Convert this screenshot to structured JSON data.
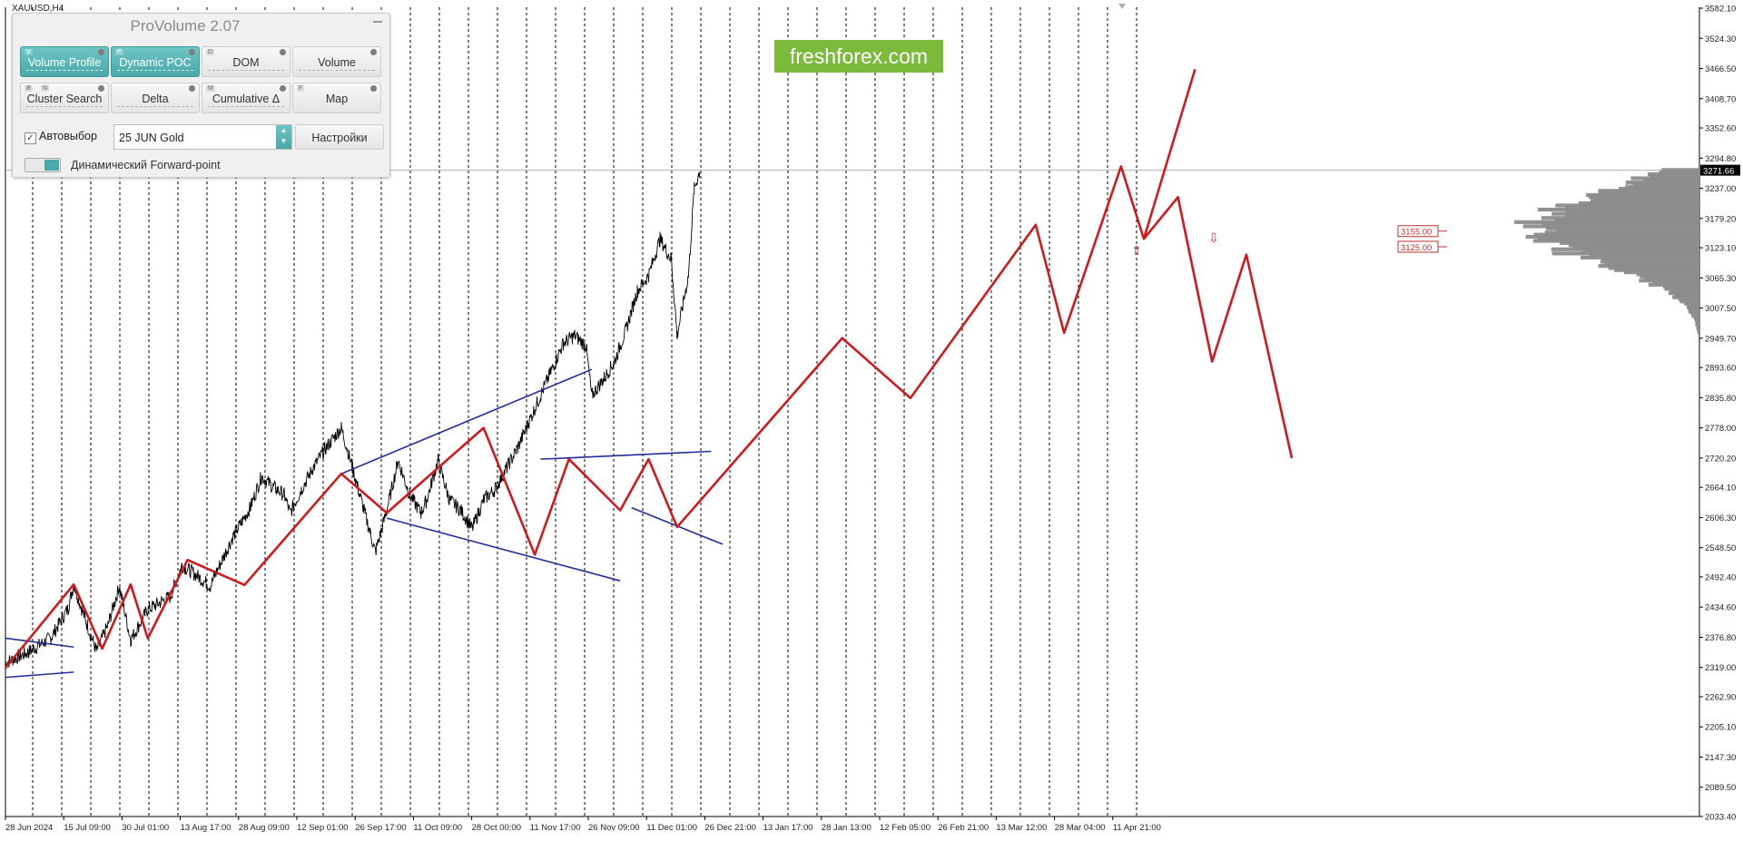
{
  "window": {
    "symbol": "XAUUSD,H4",
    "watermark": "freshforex.com",
    "current_price": "3271.66"
  },
  "panel": {
    "title": "ProVolume 2.07",
    "buttons": [
      {
        "label": "Volume Profile",
        "key": "V",
        "active": true
      },
      {
        "label": "Dynamic POC",
        "key": "P",
        "active": true
      },
      {
        "label": "DOM",
        "key": "D",
        "active": false
      },
      {
        "label": "Volume",
        "key": "",
        "active": false
      },
      {
        "label": "Cluster Search",
        "key": "B",
        "key2": "N",
        "active": false
      },
      {
        "label": "Delta",
        "key": "",
        "active": false
      },
      {
        "label": "Cumulative Δ",
        "key": "M",
        "active": false
      },
      {
        "label": "Map",
        "key": "F",
        "active": false
      }
    ],
    "autoselect_label": "Автовыбор",
    "autoselect_checked": true,
    "instrument_value": "25 JUN Gold",
    "settings_label": "Настройки",
    "forward_point_label": "Динамический Forward-point"
  },
  "chart_data": {
    "type": "line",
    "x_tick_labels": [
      "28 Jun 2024",
      "15 Jul 09:00",
      "30 Jul 01:00",
      "13 Aug 17:00",
      "28 Aug 09:00",
      "12 Sep 01:00",
      "26 Sep 17:00",
      "11 Oct 09:00",
      "28 Oct 00:00",
      "11 Nov 17:00",
      "26 Nov 09:00",
      "11 Dec 01:00",
      "26 Dec 21:00",
      "13 Jan 17:00",
      "28 Jan 13:00",
      "12 Feb 05:00",
      "26 Feb 21:00",
      "13 Mar 12:00",
      "28 Mar 04:00",
      "11 Apr 21:00"
    ],
    "y_tick_labels": [
      "3582.10",
      "3524.30",
      "3466.50",
      "3408.70",
      "3352.60",
      "3294.80",
      "3237.00",
      "3179.20",
      "3123.10",
      "3065.30",
      "3007.50",
      "2949.70",
      "2893.60",
      "2835.80",
      "2778.00",
      "2720.20",
      "2664.10",
      "2606.30",
      "2548.50",
      "2492.40",
      "2434.60",
      "2376.80",
      "2319.00",
      "2262.90",
      "2205.10",
      "2147.30",
      "2089.50",
      "2033.40"
    ],
    "ylim": [
      2033.4,
      3582.1
    ],
    "price_series": {
      "name": "XAUUSD,H4",
      "points": [
        [
          0,
          2328
        ],
        [
          4,
          2348
        ],
        [
          8,
          2376
        ],
        [
          11,
          2432
        ],
        [
          12,
          2478
        ],
        [
          14,
          2412
        ],
        [
          16,
          2350
        ],
        [
          18,
          2400
        ],
        [
          20,
          2474
        ],
        [
          22,
          2372
        ],
        [
          25,
          2430
        ],
        [
          29,
          2455
        ],
        [
          31,
          2515
        ],
        [
          33,
          2500
        ],
        [
          36,
          2475
        ],
        [
          37,
          2500
        ],
        [
          40,
          2570
        ],
        [
          43,
          2625
        ],
        [
          45,
          2685
        ],
        [
          47,
          2665
        ],
        [
          49,
          2650
        ],
        [
          50,
          2615
        ],
        [
          52,
          2660
        ],
        [
          54,
          2700
        ],
        [
          56,
          2735
        ],
        [
          59,
          2778
        ],
        [
          61,
          2700
        ],
        [
          63,
          2620
        ],
        [
          65,
          2540
        ],
        [
          67,
          2620
        ],
        [
          69,
          2715
        ],
        [
          71,
          2650
        ],
        [
          73,
          2615
        ],
        [
          74,
          2640
        ],
        [
          76,
          2715
        ],
        [
          78,
          2640
        ],
        [
          80,
          2620
        ],
        [
          82,
          2585
        ],
        [
          84,
          2640
        ],
        [
          86,
          2660
        ],
        [
          88,
          2700
        ],
        [
          90,
          2740
        ],
        [
          92,
          2790
        ],
        [
          94,
          2840
        ],
        [
          96,
          2890
        ],
        [
          98,
          2940
        ],
        [
          100,
          2955
        ],
        [
          102,
          2935
        ],
        [
          103,
          2840
        ],
        [
          105,
          2870
        ],
        [
          107,
          2905
        ],
        [
          109,
          2965
        ],
        [
          111,
          3040
        ],
        [
          113,
          3070
        ],
        [
          115,
          3140
        ],
        [
          117,
          3100
        ],
        [
          118,
          2955
        ],
        [
          120,
          3070
        ],
        [
          121,
          3235
        ],
        [
          122,
          3271.66
        ]
      ]
    },
    "zigzag": {
      "points": [
        [
          0,
          2318
        ],
        [
          12,
          2478
        ],
        [
          17,
          2355
        ],
        [
          22,
          2478
        ],
        [
          25,
          2375
        ],
        [
          32,
          2525
        ],
        [
          42,
          2477
        ],
        [
          59,
          2690
        ],
        [
          67,
          2615
        ],
        [
          84,
          2778
        ],
        [
          93,
          2535
        ],
        [
          99,
          2718
        ],
        [
          108,
          2620
        ],
        [
          113,
          2718
        ],
        [
          118,
          2588
        ],
        [
          147,
          2950
        ],
        [
          159,
          2835
        ],
        [
          181,
          3167
        ],
        [
          186,
          2960
        ],
        [
          196,
          3279
        ],
        [
          200,
          3140
        ],
        [
          206,
          3220
        ],
        [
          212,
          2905
        ],
        [
          218,
          3110
        ],
        [
          226,
          2720
        ]
      ]
    },
    "forecast": {
      "points": [
        [
          200,
          3140
        ],
        [
          209,
          3465
        ]
      ]
    },
    "channels": [
      {
        "from": [
          0,
          2375
        ],
        "to": [
          12,
          2358
        ]
      },
      {
        "from": [
          0,
          2300
        ],
        "to": [
          12,
          2310
        ]
      },
      {
        "from": [
          59,
          2690
        ],
        "to": [
          103,
          2890
        ]
      },
      {
        "from": [
          67,
          2605
        ],
        "to": [
          108,
          2485
        ]
      },
      {
        "from": [
          94,
          2718
        ],
        "to": [
          124,
          2733
        ]
      },
      {
        "from": [
          110,
          2625
        ],
        "to": [
          126,
          2555
        ]
      }
    ],
    "levels": [
      {
        "label": "3155.00",
        "price": 3155.0
      },
      {
        "label": "3125.00",
        "price": 3125.0
      }
    ],
    "arrows": [
      {
        "dir": "up",
        "price": 3118
      },
      {
        "dir": "down",
        "price": 3142
      }
    ],
    "colors": {
      "price": "#000000",
      "zigzag": "#d0191e",
      "channel": "#1f2e9a",
      "profile": "#8c8c8c",
      "grid": "#000000",
      "level": "#c03030",
      "watermark_bg": "#7cba3c",
      "accent": "#4aa9a9"
    },
    "grid": "dashed-vertical",
    "volume_profile_side": "right"
  }
}
